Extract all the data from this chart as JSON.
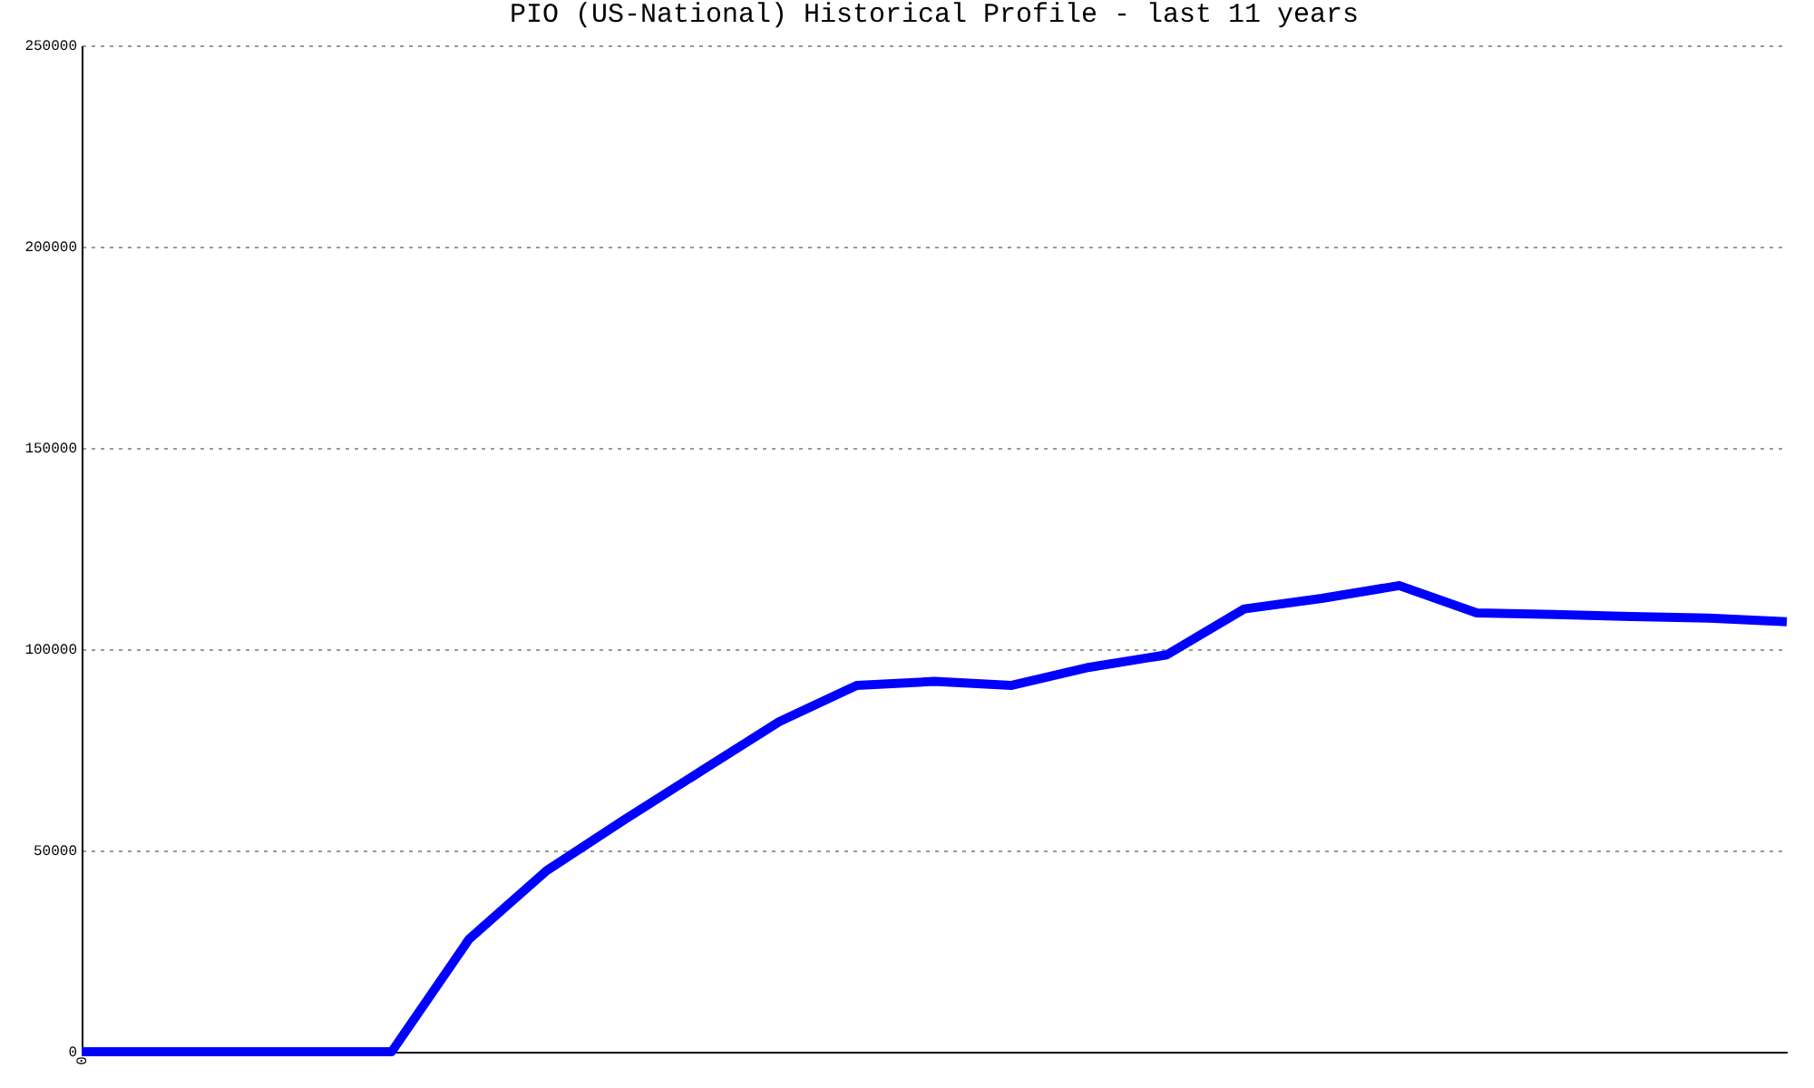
{
  "chart_data": {
    "type": "line",
    "title": "PIO (US-National) Historical Profile - last 11 years",
    "categories": [
      "0",
      null,
      null,
      null,
      null,
      null,
      null,
      null,
      null,
      null,
      null,
      null,
      null,
      null,
      null,
      null,
      null,
      null,
      null,
      null,
      null,
      null,
      null
    ],
    "series": [
      {
        "color": "#0000ff",
        "values": [
          0,
          0,
          0,
          0,
          0,
          28000,
          45000,
          57600,
          69800,
          82000,
          91000,
          92000,
          91000,
          95500,
          98600,
          110000,
          112600,
          115800,
          109000,
          108600,
          108100,
          107700,
          106800
        ]
      }
    ],
    "ylim": [
      0,
      250000
    ],
    "yticks": [
      0,
      50000,
      100000,
      150000,
      200000,
      250000
    ],
    "grid": "y",
    "legend": false,
    "marker": "none",
    "line_style": "solid"
  }
}
